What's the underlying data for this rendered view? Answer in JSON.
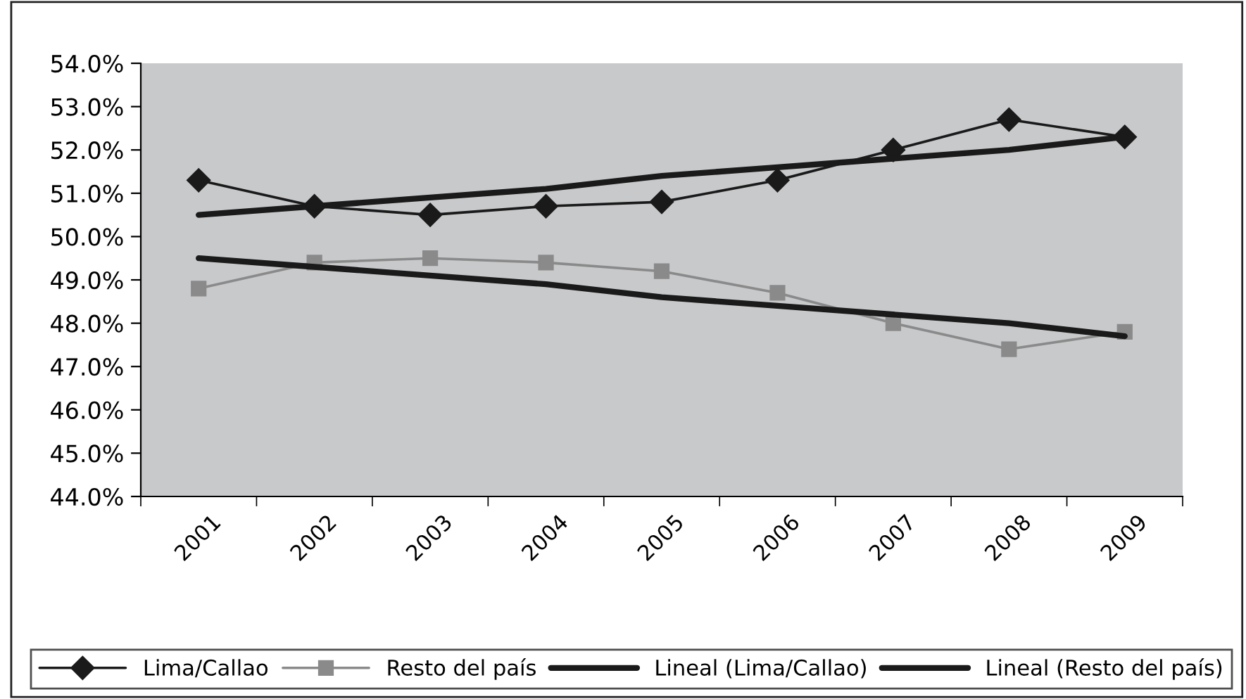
{
  "chart_data": {
    "type": "line",
    "categories": [
      "2001",
      "2002",
      "2003",
      "2004",
      "2005",
      "2006",
      "2007",
      "2008",
      "2009"
    ],
    "series": [
      {
        "name": "Lima/Callao",
        "color": "#1a1a1a",
        "marker": "diamond",
        "values": [
          51.3,
          50.7,
          50.5,
          50.7,
          50.8,
          51.3,
          52.0,
          52.7,
          52.3
        ]
      },
      {
        "name": "Resto del país",
        "color": "#8a8a8a",
        "marker": "square",
        "values": [
          48.8,
          49.4,
          49.5,
          49.4,
          49.2,
          48.7,
          48.0,
          47.4,
          47.8
        ]
      },
      {
        "name": "Lineal (Lima/Callao)",
        "color": "#1a1a1a",
        "marker": "none",
        "values": [
          50.5,
          50.7,
          50.9,
          51.1,
          51.4,
          51.6,
          51.8,
          52.0,
          52.3
        ]
      },
      {
        "name": "Lineal (Resto del país)",
        "color": "#1a1a1a",
        "marker": "none",
        "values": [
          49.5,
          49.3,
          49.1,
          48.9,
          48.6,
          48.4,
          48.2,
          48.0,
          47.7
        ]
      }
    ],
    "ylim": [
      44,
      54
    ],
    "yticks": [
      {
        "value": 44,
        "label": "44.0%"
      },
      {
        "value": 45,
        "label": "45.0%"
      },
      {
        "value": 46,
        "label": "46.0%"
      },
      {
        "value": 47,
        "label": "47.0%"
      },
      {
        "value": 48,
        "label": "48.0%"
      },
      {
        "value": 49,
        "label": "49.0%"
      },
      {
        "value": 50,
        "label": "50.0%"
      },
      {
        "value": 51,
        "label": "51.0%"
      },
      {
        "value": 52,
        "label": "52.0%"
      },
      {
        "value": 53,
        "label": "53.0%"
      },
      {
        "value": 54,
        "label": "54.0%"
      }
    ],
    "grid": false,
    "legend": "bottom",
    "line_style": "solid"
  }
}
